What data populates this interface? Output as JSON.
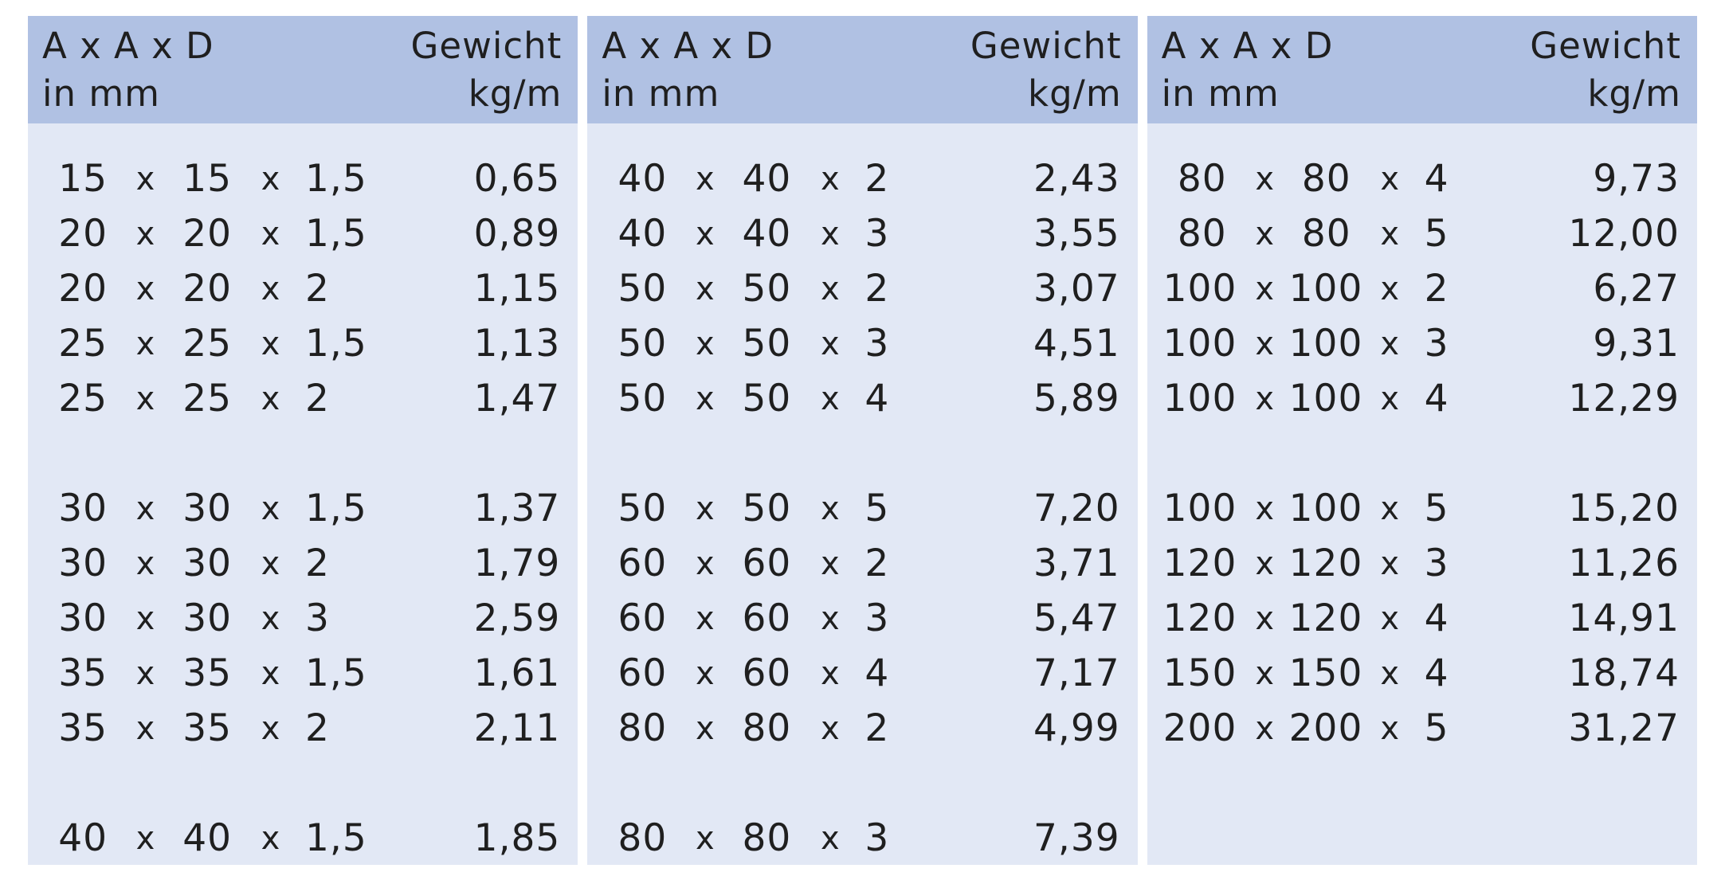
{
  "header": {
    "dim_line1": "A x A x D",
    "dim_line2": "in mm",
    "weight_line1": "Gewicht",
    "weight_line2": "kg/m"
  },
  "columns": [
    {
      "rows": [
        {
          "a": "15",
          "b": "15",
          "d": "1,5",
          "w": "0,65"
        },
        {
          "a": "20",
          "b": "20",
          "d": "1,5",
          "w": "0,89"
        },
        {
          "a": "20",
          "b": "20",
          "d": "2",
          "w": "1,15"
        },
        {
          "a": "25",
          "b": "25",
          "d": "1,5",
          "w": "1,13"
        },
        {
          "a": "25",
          "b": "25",
          "d": "2",
          "w": "1,47"
        },
        {
          "a": "30",
          "b": "30",
          "d": "1,5",
          "w": "1,37"
        },
        {
          "a": "30",
          "b": "30",
          "d": "2",
          "w": "1,79"
        },
        {
          "a": "30",
          "b": "30",
          "d": "3",
          "w": "2,59"
        },
        {
          "a": "35",
          "b": "35",
          "d": "1,5",
          "w": "1,61"
        },
        {
          "a": "35",
          "b": "35",
          "d": "2",
          "w": "2,11"
        },
        {
          "a": "40",
          "b": "40",
          "d": "1,5",
          "w": "1,85"
        }
      ]
    },
    {
      "rows": [
        {
          "a": "40",
          "b": "40",
          "d": "2",
          "w": "2,43"
        },
        {
          "a": "40",
          "b": "40",
          "d": "3",
          "w": "3,55"
        },
        {
          "a": "50",
          "b": "50",
          "d": "2",
          "w": "3,07"
        },
        {
          "a": "50",
          "b": "50",
          "d": "3",
          "w": "4,51"
        },
        {
          "a": "50",
          "b": "50",
          "d": "4",
          "w": "5,89"
        },
        {
          "a": "50",
          "b": "50",
          "d": "5",
          "w": "7,20"
        },
        {
          "a": "60",
          "b": "60",
          "d": "2",
          "w": "3,71"
        },
        {
          "a": "60",
          "b": "60",
          "d": "3",
          "w": "5,47"
        },
        {
          "a": "60",
          "b": "60",
          "d": "4",
          "w": "7,17"
        },
        {
          "a": "80",
          "b": "80",
          "d": "2",
          "w": "4,99"
        },
        {
          "a": "80",
          "b": "80",
          "d": "3",
          "w": "7,39"
        }
      ]
    },
    {
      "rows": [
        {
          "a": "80",
          "b": "80",
          "d": "4",
          "w": "9,73"
        },
        {
          "a": "80",
          "b": "80",
          "d": "5",
          "w": "12,00"
        },
        {
          "a": "100",
          "b": "100",
          "d": "2",
          "w": "6,27"
        },
        {
          "a": "100",
          "b": "100",
          "d": "3",
          "w": "9,31"
        },
        {
          "a": "100",
          "b": "100",
          "d": "4",
          "w": "12,29"
        },
        {
          "a": "100",
          "b": "100",
          "d": "5",
          "w": "15,20"
        },
        {
          "a": "120",
          "b": "120",
          "d": "3",
          "w": "11,26"
        },
        {
          "a": "120",
          "b": "120",
          "d": "4",
          "w": "14,91"
        },
        {
          "a": "150",
          "b": "150",
          "d": "4",
          "w": "18,74"
        },
        {
          "a": "200",
          "b": "200",
          "d": "5",
          "w": "31,27"
        }
      ]
    }
  ],
  "times_sign": "x",
  "footnote": ""
}
